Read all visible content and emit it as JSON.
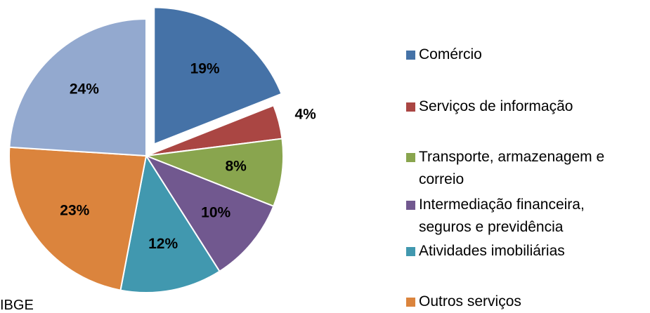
{
  "chart_data": {
    "type": "pie",
    "categories": [
      "Comércio",
      "Serviços de informação",
      "Transporte, armazenagem e correio",
      "Intermediação financeira, seguros e previdência",
      "Atividades imobiliárias",
      "Outros serviços",
      null
    ],
    "values": [
      19,
      4,
      8,
      10,
      12,
      23,
      24
    ],
    "value_labels": [
      "19%",
      "4%",
      "8%",
      "10%",
      "12%",
      "23%",
      "24%"
    ],
    "colors": [
      "#4572a7",
      "#aa4643",
      "#89a54e",
      "#71588f",
      "#4198af",
      "#db843d",
      "#93a9cf"
    ],
    "exploded": [
      0
    ],
    "legend": "right",
    "source": "IBGE"
  }
}
